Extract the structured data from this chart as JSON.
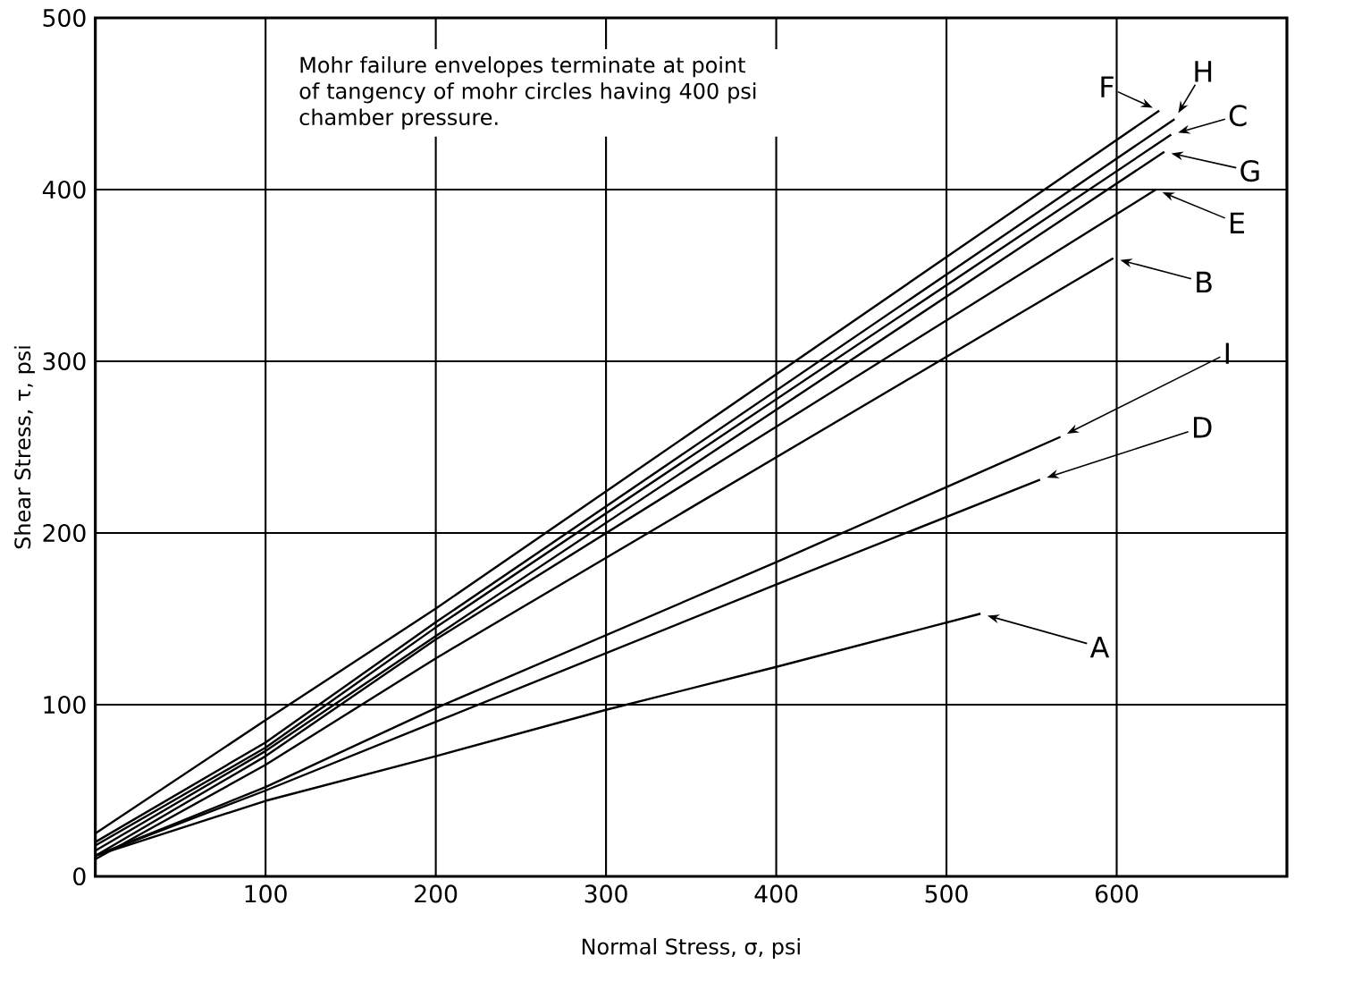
{
  "chart_data": {
    "type": "line",
    "xlabel": "Normal Stress, σ, psi",
    "ylabel": "Shear Stress, τ, psi",
    "xlim": [
      0,
      700
    ],
    "ylim": [
      0,
      500
    ],
    "xticks": [
      100,
      200,
      300,
      400,
      500,
      600
    ],
    "yticks": [
      0,
      100,
      200,
      300,
      400,
      500
    ],
    "grid": true,
    "marker": "none",
    "line_style": "solid",
    "series": [
      {
        "color": "#000000",
        "x": [
          0,
          100,
          200,
          625
        ],
        "values": [
          25,
          91,
          156,
          446
        ]
      },
      {
        "color": "#000000",
        "x": [
          0,
          100,
          200,
          634
        ],
        "values": [
          20,
          78,
          148,
          441
        ]
      },
      {
        "color": "#000000",
        "x": [
          0,
          100,
          200,
          632
        ],
        "values": [
          18,
          75,
          145,
          432
        ]
      },
      {
        "color": "#000000",
        "x": [
          0,
          100,
          200,
          628
        ],
        "values": [
          15,
          73,
          140,
          422
        ]
      },
      {
        "color": "#000000",
        "x": [
          0,
          100,
          200,
          623
        ],
        "values": [
          12,
          70,
          138,
          400
        ]
      },
      {
        "color": "#000000",
        "x": [
          0,
          100,
          200,
          598
        ],
        "values": [
          10,
          65,
          127,
          360
        ]
      },
      {
        "color": "#000000",
        "x": [
          0,
          100,
          200,
          400,
          567
        ],
        "values": [
          12,
          52,
          98,
          183,
          256
        ]
      },
      {
        "color": "#000000",
        "x": [
          0,
          100,
          200,
          400,
          555
        ],
        "values": [
          12,
          50,
          90,
          170,
          231
        ]
      },
      {
        "color": "#000000",
        "x": [
          0,
          100,
          200,
          300,
          400,
          520
        ],
        "values": [
          12,
          44,
          70,
          97,
          122,
          153
        ]
      }
    ],
    "annotations": [
      "Mohr failure envelopes terminate at point of tangency of mohr circles having 400 psi chamber pressure.",
      {
        "text": "F",
        "x": 625,
        "y": 446
      },
      {
        "text": "H",
        "x": 634,
        "y": 441
      },
      {
        "text": "C",
        "x": 632,
        "y": 432
      },
      {
        "text": "G",
        "x": 628,
        "y": 422
      },
      {
        "text": "E",
        "x": 623,
        "y": 400
      },
      {
        "text": "B",
        "x": 598,
        "y": 360
      },
      {
        "text": "I",
        "x": 567,
        "y": 256
      },
      {
        "text": "D",
        "x": 555,
        "y": 231
      },
      {
        "text": "A",
        "x": 520,
        "y": 153
      }
    ]
  }
}
